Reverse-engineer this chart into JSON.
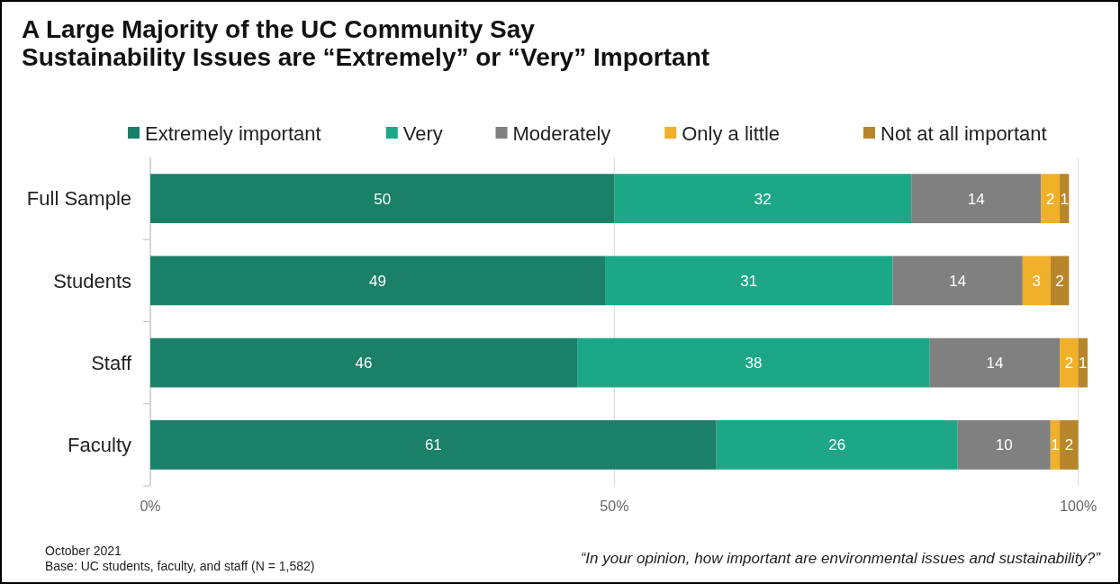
{
  "chart_data": {
    "type": "bar",
    "orientation": "horizontal",
    "stacked": true,
    "title": "A Large Majority of the UC Community Say\nSustainability Issues are “Extremely” or “Very” Important",
    "categories": [
      "Full Sample",
      "Students",
      "Staff",
      "Faculty"
    ],
    "series": [
      {
        "name": "Extremely important",
        "color": "#1a8068",
        "values": [
          50,
          49,
          46,
          61
        ]
      },
      {
        "name": "Very",
        "color": "#1ca887",
        "values": [
          32,
          31,
          38,
          26
        ]
      },
      {
        "name": "Moderately",
        "color": "#808080",
        "values": [
          14,
          14,
          14,
          10
        ]
      },
      {
        "name": "Only a little",
        "color": "#f0b02a",
        "values": [
          2,
          3,
          2,
          1
        ]
      },
      {
        "name": "Not at all important",
        "color": "#b8862a",
        "values": [
          1,
          2,
          1,
          2
        ]
      }
    ],
    "xlim": [
      0,
      101
    ],
    "xticks": [
      {
        "value": 0,
        "label": "0%"
      },
      {
        "value": 50,
        "label": "50%"
      },
      {
        "value": 100,
        "label": "100%"
      }
    ],
    "grid": "x",
    "legend": "top",
    "data_labels": true,
    "annotations": [
      "October 2021",
      "Base: UC students, faculty, and staff (N = 1,582)",
      "“In your opinion, how important are environmental issues and sustainability?”"
    ]
  }
}
